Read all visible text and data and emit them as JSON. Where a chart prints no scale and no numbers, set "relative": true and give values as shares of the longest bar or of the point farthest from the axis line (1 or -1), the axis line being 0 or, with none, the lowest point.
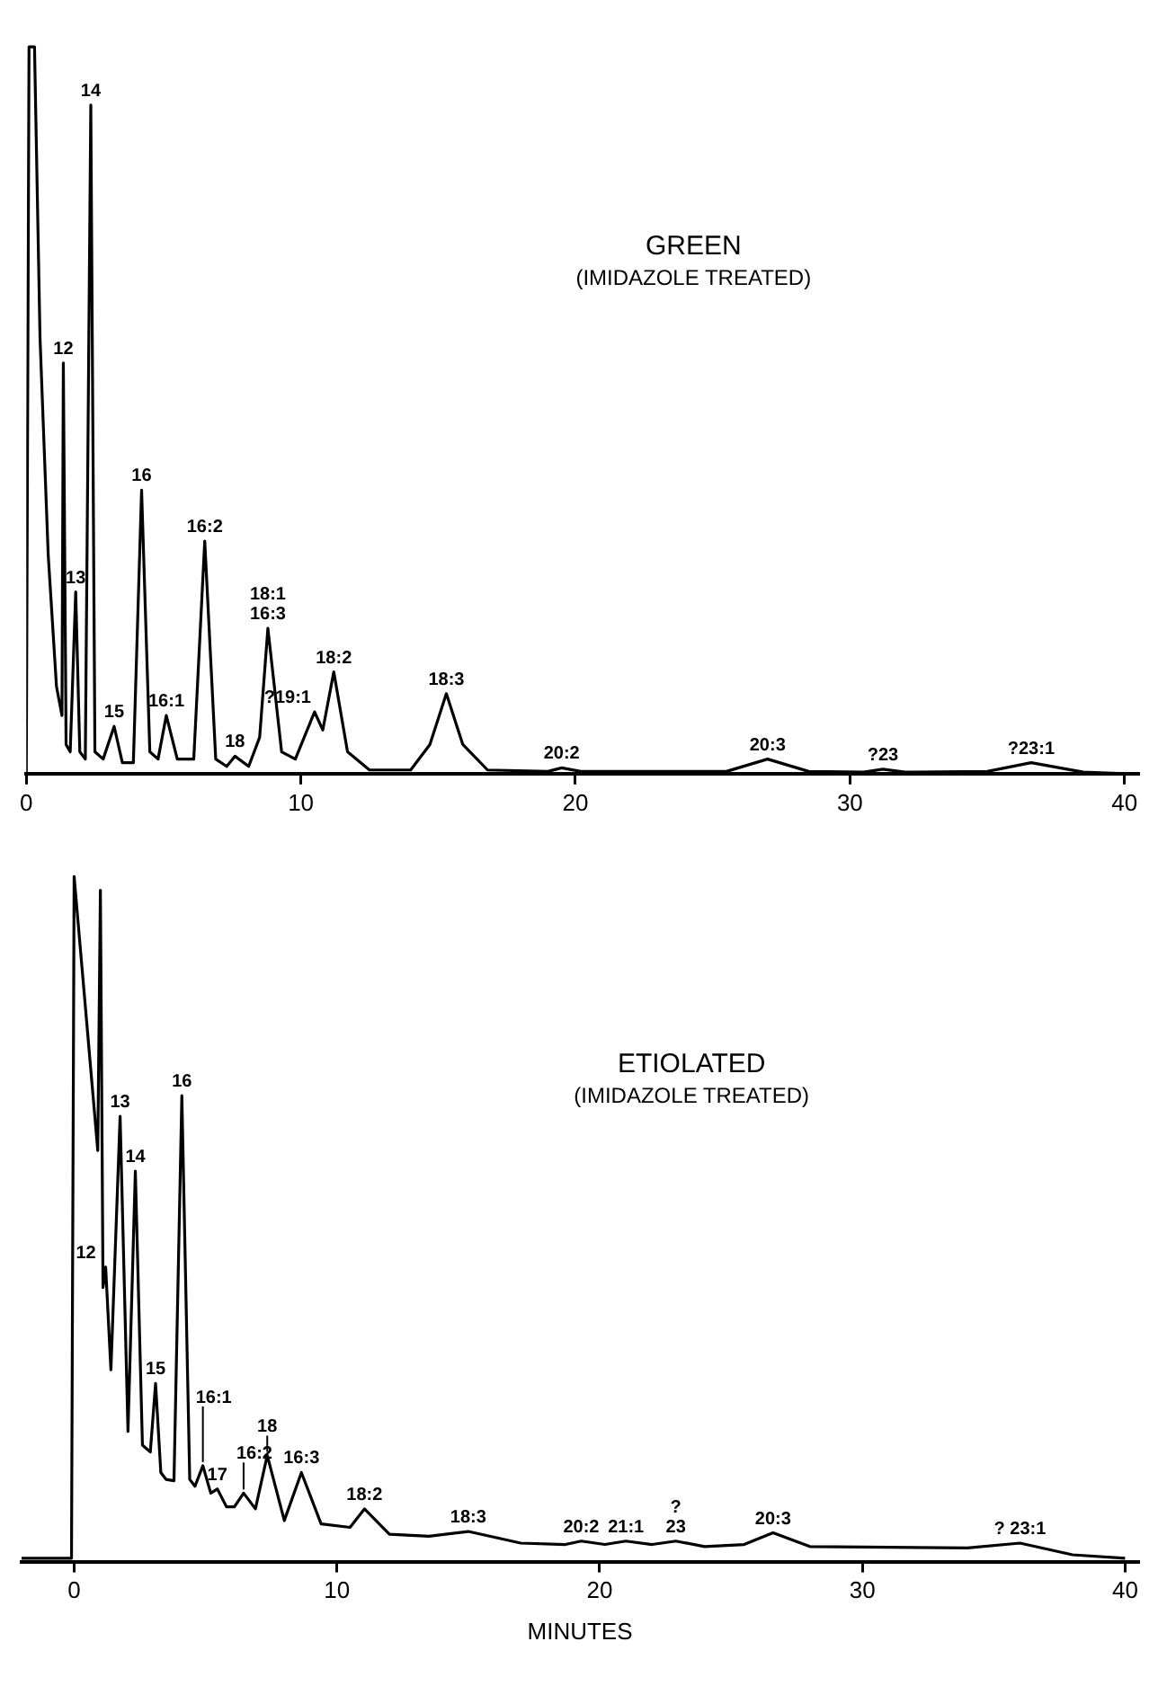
{
  "chart_data": [
    {
      "type": "line",
      "title": "GREEN",
      "subtitle": "(IMIDAZOLE TREATED)",
      "relative": true,
      "color": "#000000",
      "marker": "none",
      "line_style": "solid",
      "grid": false,
      "legend": false,
      "tick_labels": "x",
      "xlim": [
        0,
        40.5
      ],
      "xticks": [
        0,
        10,
        20,
        30,
        40
      ],
      "x": [
        0,
        0.1,
        0.3,
        0.5,
        0.8,
        1.1,
        1.3,
        1.35,
        1.45,
        1.6,
        1.8,
        1.95,
        2.15,
        2.35,
        2.5,
        2.8,
        3.2,
        3.5,
        3.9,
        4.2,
        4.5,
        4.8,
        5.1,
        5.5,
        6.1,
        6.5,
        6.9,
        7.3,
        7.6,
        8.1,
        8.5,
        8.8,
        9.3,
        9.8,
        10.5,
        10.8,
        11.2,
        11.7,
        12.5,
        14,
        14.7,
        15.3,
        15.9,
        16.8,
        19,
        19.5,
        20.2,
        25.5,
        27,
        28.5,
        30.5,
        31.2,
        32,
        35,
        36.6,
        38.5,
        40
      ],
      "values": [
        0,
        1,
        1,
        0.6,
        0.3,
        0.12,
        0.08,
        0.565,
        0.04,
        0.03,
        0.25,
        0.03,
        0.02,
        0.92,
        0.03,
        0.02,
        0.065,
        0.015,
        0.015,
        0.39,
        0.03,
        0.02,
        0.08,
        0.02,
        0.02,
        0.32,
        0.02,
        0.01,
        0.024,
        0.01,
        0.05,
        0.2,
        0.03,
        0.02,
        0.085,
        0.06,
        0.14,
        0.03,
        0.005,
        0.005,
        0.04,
        0.11,
        0.04,
        0.005,
        0.003,
        0.008,
        0.003,
        0.003,
        0.02,
        0.003,
        0.002,
        0.006,
        0.002,
        0.003,
        0.015,
        0.002,
        0
      ],
      "annotations": [
        {
          "text": "12",
          "x": 1.35,
          "y": 0.565
        },
        {
          "text": "13",
          "x": 1.8,
          "y": 0.25
        },
        {
          "text": "14",
          "x": 2.35,
          "y": 0.92
        },
        {
          "text": "15",
          "x": 3.2,
          "y": 0.065
        },
        {
          "text": "16",
          "x": 4.2,
          "y": 0.39
        },
        {
          "text": "16:1",
          "x": 5.1,
          "y": 0.08
        },
        {
          "text": "16:2",
          "x": 6.5,
          "y": 0.32
        },
        {
          "text": "18",
          "x": 7.6,
          "y": 0.024
        },
        {
          "text": "18:1\n16:3",
          "x": 8.8,
          "y": 0.2
        },
        {
          "text": "?19:1",
          "x": 10.5,
          "y": 0.085
        },
        {
          "text": "18:2",
          "x": 11.2,
          "y": 0.14
        },
        {
          "text": "18:3",
          "x": 15.3,
          "y": 0.11
        },
        {
          "text": "20:2",
          "x": 19.5,
          "y": 0.008
        },
        {
          "text": "20:3",
          "x": 27,
          "y": 0.02
        },
        {
          "text": "?23",
          "x": 31.2,
          "y": 0.006
        },
        {
          "text": "?23:1",
          "x": 36.6,
          "y": 0.015
        }
      ]
    },
    {
      "type": "line",
      "title": "ETIOLATED",
      "subtitle": "(IMIDAZOLE TREATED)",
      "xlabel": "MINUTES",
      "relative": true,
      "color": "#000000",
      "marker": "none",
      "line_style": "solid",
      "grid": false,
      "legend": false,
      "tick_labels": "x",
      "xlim": [
        -2,
        40.5
      ],
      "xticks": [
        0,
        10,
        20,
        30,
        40
      ],
      "x": [
        -2,
        -0.1,
        0,
        0.9,
        1.0,
        1.1,
        1.2,
        1.4,
        1.75,
        2.05,
        2.33,
        2.6,
        2.9,
        3.1,
        3.3,
        3.5,
        3.8,
        4.1,
        4.4,
        4.6,
        4.9,
        5.2,
        5.45,
        5.8,
        6.1,
        6.45,
        6.9,
        7.35,
        8.0,
        8.65,
        9.4,
        10.5,
        11.05,
        12,
        13.5,
        15,
        17,
        18.7,
        19.3,
        20.2,
        21,
        22,
        22.9,
        24,
        25.5,
        26.6,
        28,
        34,
        36,
        38,
        40
      ],
      "values": [
        0.005,
        0.005,
        1,
        0.6,
        0.98,
        0.4,
        0.43,
        0.28,
        0.65,
        0.19,
        0.57,
        0.17,
        0.16,
        0.26,
        0.13,
        0.12,
        0.118,
        0.68,
        0.12,
        0.11,
        0.14,
        0.1,
        0.106,
        0.08,
        0.08,
        0.1,
        0.077,
        0.155,
        0.06,
        0.13,
        0.055,
        0.05,
        0.077,
        0.04,
        0.037,
        0.044,
        0.027,
        0.025,
        0.03,
        0.025,
        0.03,
        0.025,
        0.03,
        0.022,
        0.025,
        0.042,
        0.022,
        0.02,
        0.027,
        0.01,
        0.005
      ],
      "annotations": [
        {
          "text": "12",
          "x": 1.2,
          "y": 0.43
        },
        {
          "text": "13",
          "x": 1.75,
          "y": 0.65
        },
        {
          "text": "14",
          "x": 2.33,
          "y": 0.57
        },
        {
          "text": "15",
          "x": 3.1,
          "y": 0.26
        },
        {
          "text": "16",
          "x": 4.1,
          "y": 0.68
        },
        {
          "text": "16:1",
          "x": 4.9,
          "y": 0.14
        },
        {
          "text": "17",
          "x": 5.45,
          "y": 0.106
        },
        {
          "text": "16:2",
          "x": 6.45,
          "y": 0.1
        },
        {
          "text": "18",
          "x": 7.35,
          "y": 0.155
        },
        {
          "text": "16:3",
          "x": 8.65,
          "y": 0.13
        },
        {
          "text": "18:2",
          "x": 11.05,
          "y": 0.077
        },
        {
          "text": "18:3",
          "x": 15,
          "y": 0.044
        },
        {
          "text": "20:2",
          "x": 19.3,
          "y": 0.03
        },
        {
          "text": "21:1",
          "x": 21,
          "y": 0.03
        },
        {
          "text": "?\n23",
          "x": 22.9,
          "y": 0.03
        },
        {
          "text": "20:3",
          "x": 26.6,
          "y": 0.042
        },
        {
          "text": "? 23:1",
          "x": 36,
          "y": 0.027
        }
      ]
    }
  ]
}
